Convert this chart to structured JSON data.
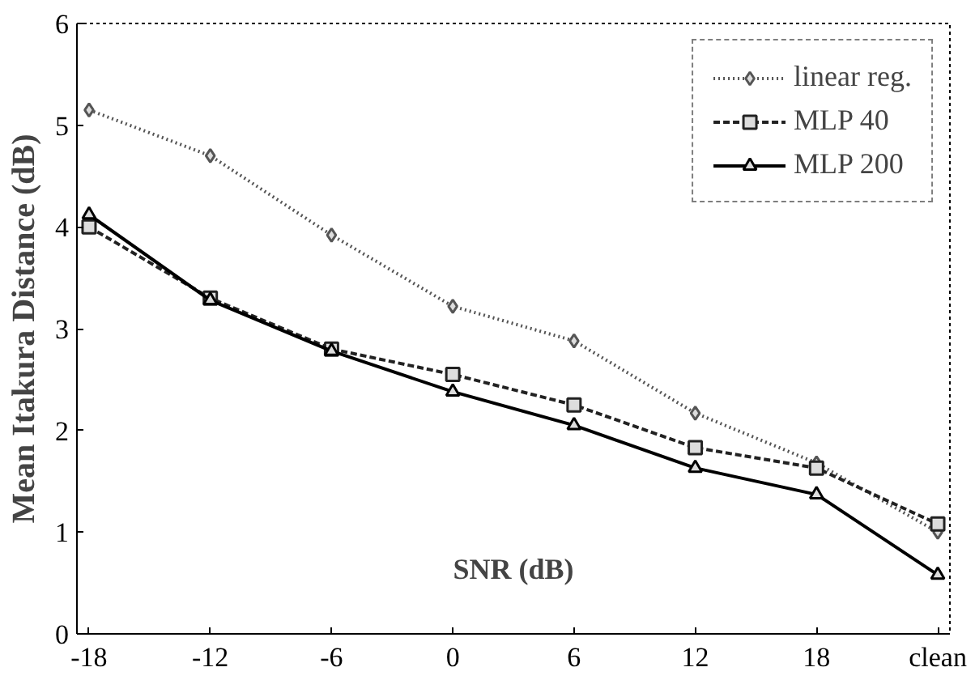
{
  "chart_data": {
    "type": "line",
    "xlabel": "SNR (dB)",
    "ylabel": "Mean Itakura Distance (dB)",
    "categories": [
      "-18",
      "-12",
      "-6",
      "0",
      "6",
      "12",
      "18",
      "clean"
    ],
    "ylim": [
      0,
      6
    ],
    "yticks": [
      0,
      1,
      2,
      3,
      4,
      5,
      6
    ],
    "grid": false,
    "legend": "top right",
    "series": [
      {
        "name": "linear reg.",
        "color": "#555555",
        "marker": "diamond",
        "line_style": "dotted",
        "values": [
          5.15,
          4.7,
          3.92,
          3.22,
          2.88,
          2.17,
          1.68,
          1.0
        ]
      },
      {
        "name": "MLP 40",
        "color": "#222222",
        "marker": "square",
        "line_style": "dashed",
        "values": [
          4.0,
          3.3,
          2.8,
          2.55,
          2.25,
          1.83,
          1.63,
          1.08
        ]
      },
      {
        "name": "MLP 200",
        "color": "#000000",
        "marker": "triangle",
        "line_style": "solid",
        "values": [
          4.12,
          3.28,
          2.78,
          2.38,
          2.05,
          1.63,
          1.37,
          0.58
        ]
      }
    ]
  }
}
